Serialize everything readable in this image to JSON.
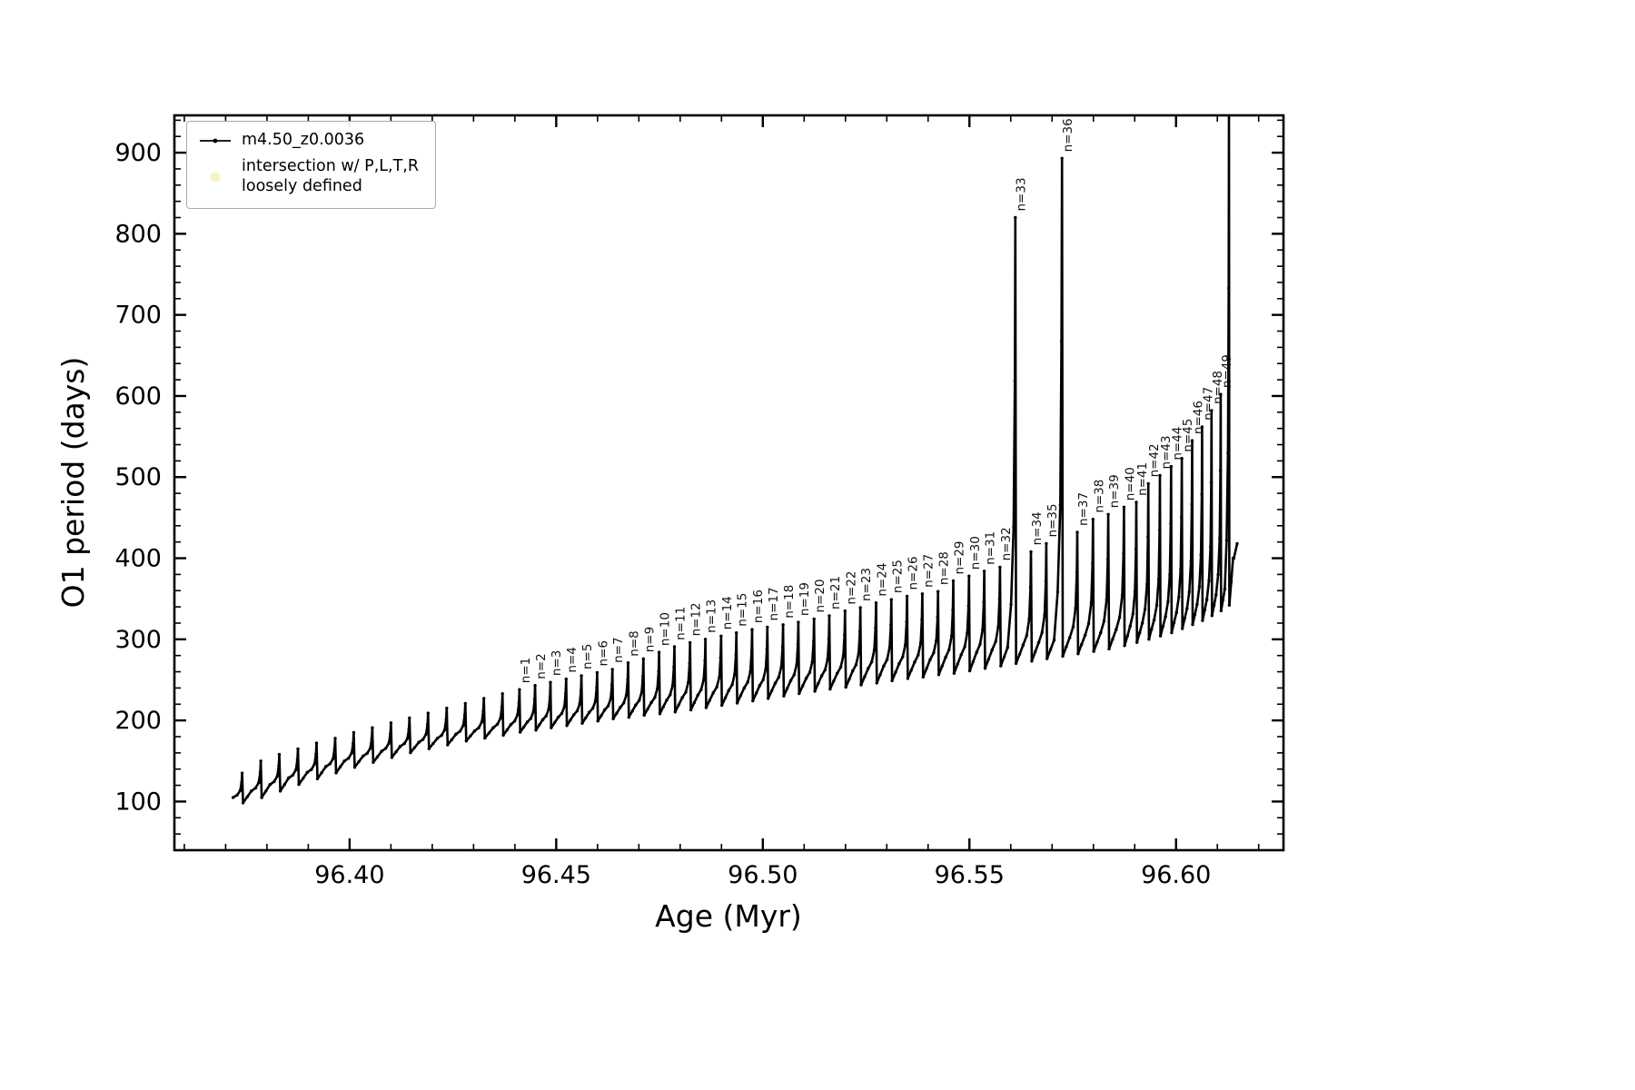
{
  "figure_kind": "scatter-line pulsation period evolution plot",
  "legend": {
    "entries": [
      {
        "label": "m4.50_z0.0036",
        "marker": "line-dot",
        "color": "#000000"
      },
      {
        "label": "intersection w/ P,L,T,R\nloosely defined",
        "marker": "dot",
        "color": "#f6f4c3"
      }
    ]
  },
  "chart_data": {
    "type": "line",
    "series_name": "m4.50_z0.0036",
    "line_color": "#000000",
    "title": "",
    "xlabel": "Age (Myr)",
    "ylabel": "O1 period (days)",
    "xlim": [
      96.3576,
      96.626
    ],
    "ylim": [
      40,
      946
    ],
    "xticks": [
      96.4,
      96.45,
      96.5,
      96.55,
      96.6
    ],
    "xtick_labels": [
      "96.40",
      "96.45",
      "96.50",
      "96.55",
      "96.60"
    ],
    "yticks": [
      100,
      200,
      300,
      400,
      500,
      600,
      700,
      800,
      900
    ],
    "ytick_labels": [
      "100",
      "200",
      "300",
      "400",
      "500",
      "600",
      "700",
      "800",
      "900"
    ],
    "x_minor_step": 0.01,
    "y_minor_step": 20,
    "grid": false,
    "legend_position": "upper left",
    "annotation_rotation_deg": 90,
    "pulses_note": "each pulse: [age_Myr, base_period_days, peak_period_days, label]; peaks n=33, n=36 and the final unlabeled pulse are tall spikes (final one clipped by the top axis)",
    "pulses": [
      [
        96.374,
        105,
        135,
        null
      ],
      [
        96.3785,
        113,
        150,
        null
      ],
      [
        96.383,
        121,
        158,
        null
      ],
      [
        96.3875,
        129,
        165,
        null
      ],
      [
        96.392,
        136,
        172,
        null
      ],
      [
        96.3965,
        143,
        178,
        null
      ],
      [
        96.401,
        150,
        185,
        null
      ],
      [
        96.4055,
        156,
        191,
        null
      ],
      [
        96.41,
        162,
        197,
        null
      ],
      [
        96.4145,
        168,
        203,
        null
      ],
      [
        96.419,
        173,
        209,
        null
      ],
      [
        96.4235,
        178,
        215,
        null
      ],
      [
        96.428,
        183,
        221,
        null
      ],
      [
        96.4325,
        187,
        227,
        null
      ],
      [
        96.437,
        191,
        233,
        null
      ],
      [
        96.4411,
        195,
        238,
        "n=1"
      ],
      [
        96.4449,
        198,
        243,
        "n=2"
      ],
      [
        96.4486,
        201,
        247,
        "n=3"
      ],
      [
        96.4524,
        204,
        251,
        "n=4"
      ],
      [
        96.4561,
        207,
        255,
        "n=5"
      ],
      [
        96.4599,
        210,
        259,
        "n=6"
      ],
      [
        96.4636,
        213,
        263,
        "n=7"
      ],
      [
        96.4674,
        216,
        271,
        "n=8"
      ],
      [
        96.4711,
        219,
        276,
        "n=9"
      ],
      [
        96.4749,
        222,
        284,
        "n=10"
      ],
      [
        96.4786,
        225,
        291,
        "n=11"
      ],
      [
        96.4824,
        228,
        296,
        "n=12"
      ],
      [
        96.4861,
        231,
        300,
        "n=13"
      ],
      [
        96.4899,
        234,
        304,
        "n=14"
      ],
      [
        96.4936,
        237,
        308,
        "n=15"
      ],
      [
        96.4974,
        240,
        312,
        "n=16"
      ],
      [
        96.5011,
        243,
        315,
        "n=17"
      ],
      [
        96.5049,
        246,
        318,
        "n=18"
      ],
      [
        96.5086,
        249,
        321,
        "n=19"
      ],
      [
        96.5124,
        252,
        325,
        "n=20"
      ],
      [
        96.5161,
        255,
        329,
        "n=21"
      ],
      [
        96.5199,
        258,
        335,
        "n=22"
      ],
      [
        96.5236,
        261,
        339,
        "n=23"
      ],
      [
        96.5274,
        264,
        345,
        "n=24"
      ],
      [
        96.5311,
        267,
        349,
        "n=25"
      ],
      [
        96.5349,
        270,
        353,
        "n=26"
      ],
      [
        96.5386,
        272,
        356,
        "n=27"
      ],
      [
        96.5424,
        275,
        359,
        "n=28"
      ],
      [
        96.5461,
        278,
        372,
        "n=29"
      ],
      [
        96.5499,
        281,
        378,
        "n=30"
      ],
      [
        96.5536,
        284,
        384,
        "n=31"
      ],
      [
        96.5574,
        287,
        389,
        "n=32"
      ],
      [
        96.5611,
        290,
        820,
        "n=33"
      ],
      [
        96.5649,
        293,
        408,
        "n=34"
      ],
      [
        96.5686,
        296,
        418,
        "n=35"
      ],
      [
        96.5724,
        299,
        893,
        "n=36"
      ],
      [
        96.5761,
        302,
        432,
        "n=37"
      ],
      [
        96.5799,
        305,
        448,
        "n=38"
      ],
      [
        96.5836,
        308,
        454,
        "n=39"
      ],
      [
        96.5874,
        312,
        463,
        "n=40"
      ],
      [
        96.5904,
        316,
        469,
        "n=41"
      ],
      [
        96.5933,
        320,
        492,
        "n=42"
      ],
      [
        96.5961,
        324,
        502,
        "n=43"
      ],
      [
        96.5988,
        328,
        513,
        "n=44"
      ],
      [
        96.6014,
        333,
        523,
        "n=45"
      ],
      [
        96.6039,
        338,
        545,
        "n=46"
      ],
      [
        96.6063,
        343,
        562,
        "n=47"
      ],
      [
        96.6086,
        349,
        582,
        "n=48"
      ],
      [
        96.6108,
        355,
        602,
        "n=49"
      ],
      [
        96.6128,
        362,
        960,
        null
      ]
    ],
    "tail": [
      [
        96.614,
        400
      ],
      [
        96.6148,
        418
      ]
    ]
  }
}
